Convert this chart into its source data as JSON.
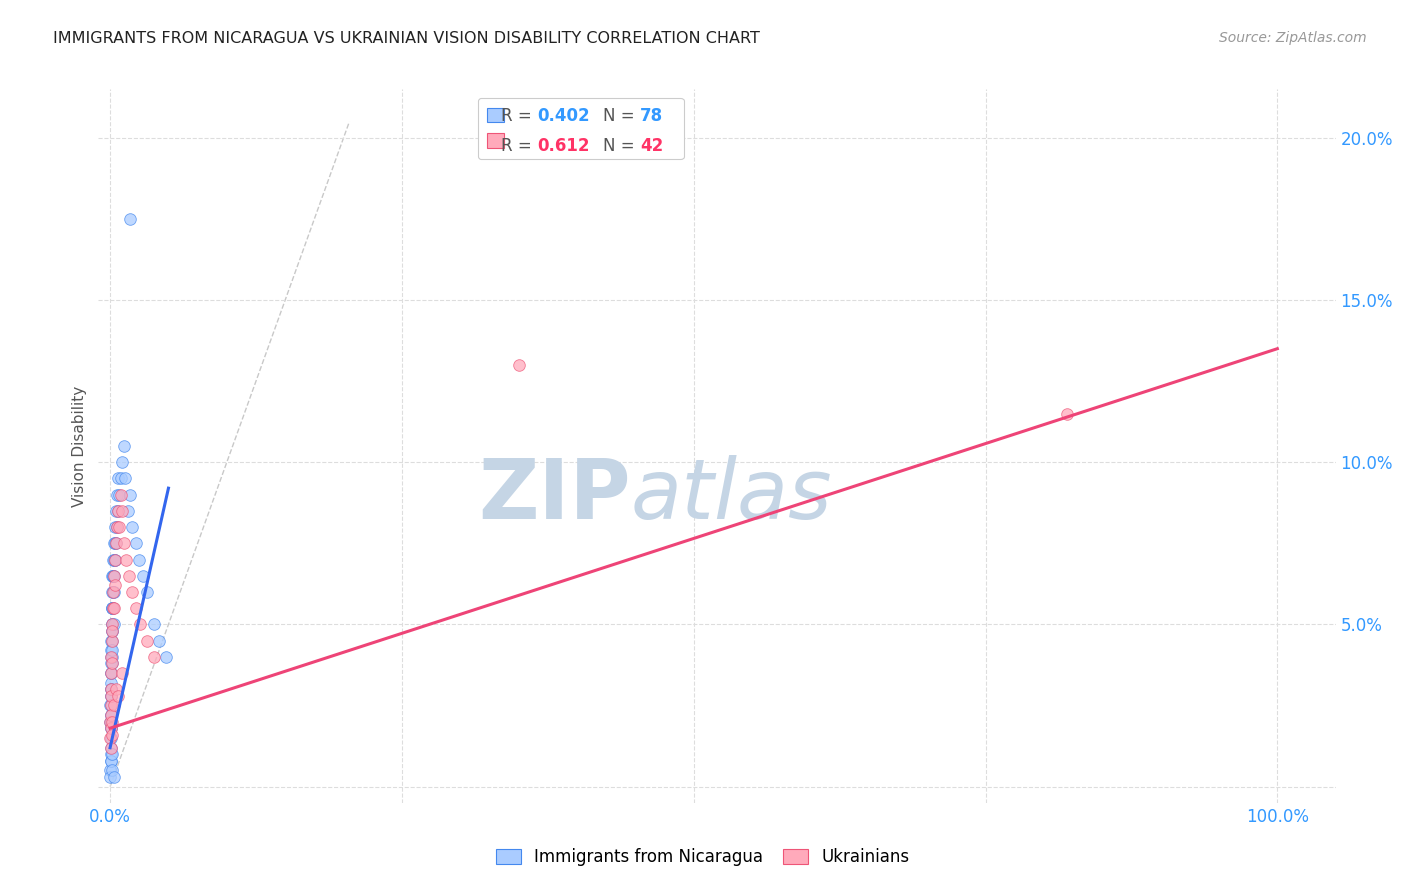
{
  "title": "IMMIGRANTS FROM NICARAGUA VS UKRAINIAN VISION DISABILITY CORRELATION CHART",
  "source": "Source: ZipAtlas.com",
  "ylabel": "Vision Disability",
  "color_blue": "#aaccff",
  "color_blue_edge": "#4488ee",
  "color_pink": "#ffaabb",
  "color_pink_edge": "#ee5577",
  "color_blue_line": "#3366ee",
  "color_pink_line": "#ee4477",
  "color_blue_text": "#3399ff",
  "color_pink_text": "#ff3366",
  "watermark_zip_color": "#c5d5e5",
  "watermark_atlas_color": "#c5d5e5",
  "background_color": "#ffffff",
  "r_blue": "0.402",
  "n_blue": "78",
  "r_pink": "0.612",
  "n_pink": "42",
  "blue_points_x": [
    0.0002,
    0.0003,
    0.0004,
    0.0005,
    0.0005,
    0.0006,
    0.0006,
    0.0007,
    0.0007,
    0.0008,
    0.0008,
    0.0009,
    0.0009,
    0.001,
    0.001,
    0.001,
    0.0011,
    0.0011,
    0.0012,
    0.0012,
    0.0013,
    0.0013,
    0.0014,
    0.0014,
    0.0015,
    0.0015,
    0.0016,
    0.0016,
    0.0017,
    0.0018,
    0.0018,
    0.002,
    0.002,
    0.0021,
    0.0022,
    0.0023,
    0.0024,
    0.0025,
    0.003,
    0.003,
    0.003,
    0.0033,
    0.0035,
    0.004,
    0.004,
    0.0042,
    0.0045,
    0.005,
    0.005,
    0.006,
    0.006,
    0.007,
    0.007,
    0.008,
    0.009,
    0.01,
    0.012,
    0.013,
    0.015,
    0.017,
    0.019,
    0.022,
    0.025,
    0.028,
    0.032,
    0.038,
    0.042,
    0.048,
    0.0002,
    0.0003,
    0.0004,
    0.0005,
    0.0008,
    0.001,
    0.0015,
    0.002,
    0.003,
    0.017
  ],
  "blue_points_y": [
    0.025,
    0.02,
    0.015,
    0.03,
    0.018,
    0.022,
    0.028,
    0.025,
    0.032,
    0.02,
    0.035,
    0.018,
    0.028,
    0.04,
    0.03,
    0.022,
    0.038,
    0.045,
    0.035,
    0.042,
    0.048,
    0.038,
    0.05,
    0.04,
    0.055,
    0.045,
    0.05,
    0.042,
    0.055,
    0.06,
    0.048,
    0.065,
    0.055,
    0.07,
    0.065,
    0.06,
    0.055,
    0.065,
    0.075,
    0.06,
    0.05,
    0.07,
    0.065,
    0.08,
    0.07,
    0.075,
    0.07,
    0.085,
    0.075,
    0.09,
    0.08,
    0.095,
    0.085,
    0.09,
    0.095,
    0.1,
    0.105,
    0.095,
    0.085,
    0.09,
    0.08,
    0.075,
    0.07,
    0.065,
    0.06,
    0.05,
    0.045,
    0.04,
    0.005,
    0.003,
    0.008,
    0.01,
    0.012,
    0.008,
    0.01,
    0.005,
    0.003,
    0.175
  ],
  "pink_points_x": [
    0.0003,
    0.0005,
    0.0006,
    0.0008,
    0.001,
    0.0012,
    0.0014,
    0.0016,
    0.0018,
    0.002,
    0.0022,
    0.0025,
    0.003,
    0.003,
    0.004,
    0.004,
    0.005,
    0.006,
    0.007,
    0.008,
    0.009,
    0.01,
    0.012,
    0.014,
    0.016,
    0.019,
    0.022,
    0.026,
    0.032,
    0.038,
    0.0003,
    0.0005,
    0.0008,
    0.001,
    0.0015,
    0.002,
    0.003,
    0.005,
    0.007,
    0.01,
    0.82,
    0.35
  ],
  "pink_points_y": [
    0.02,
    0.025,
    0.03,
    0.028,
    0.035,
    0.04,
    0.045,
    0.038,
    0.05,
    0.048,
    0.055,
    0.06,
    0.065,
    0.055,
    0.07,
    0.062,
    0.075,
    0.08,
    0.085,
    0.08,
    0.09,
    0.085,
    0.075,
    0.07,
    0.065,
    0.06,
    0.055,
    0.05,
    0.045,
    0.04,
    0.015,
    0.012,
    0.018,
    0.022,
    0.016,
    0.02,
    0.025,
    0.03,
    0.028,
    0.035,
    0.115,
    0.13
  ],
  "blue_line_x": [
    0.0,
    0.05
  ],
  "blue_line_y": [
    0.012,
    0.092
  ],
  "pink_line_x": [
    0.0,
    1.0
  ],
  "pink_line_y": [
    0.018,
    0.135
  ],
  "ref_line_x": [
    0.0,
    0.205
  ],
  "ref_line_y": [
    0.0,
    0.205
  ],
  "ylim": [
    -0.005,
    0.215
  ],
  "xlim": [
    -0.01,
    1.05
  ],
  "yticks": [
    0.0,
    0.05,
    0.1,
    0.15,
    0.2
  ],
  "ytick_labels": [
    "",
    "5.0%",
    "10.0%",
    "15.0%",
    "20.0%"
  ],
  "xtick_vals": [
    0.0,
    0.25,
    0.5,
    0.75,
    1.0
  ],
  "xtick_labels": [
    "0.0%",
    "",
    "",
    "",
    "100.0%"
  ]
}
